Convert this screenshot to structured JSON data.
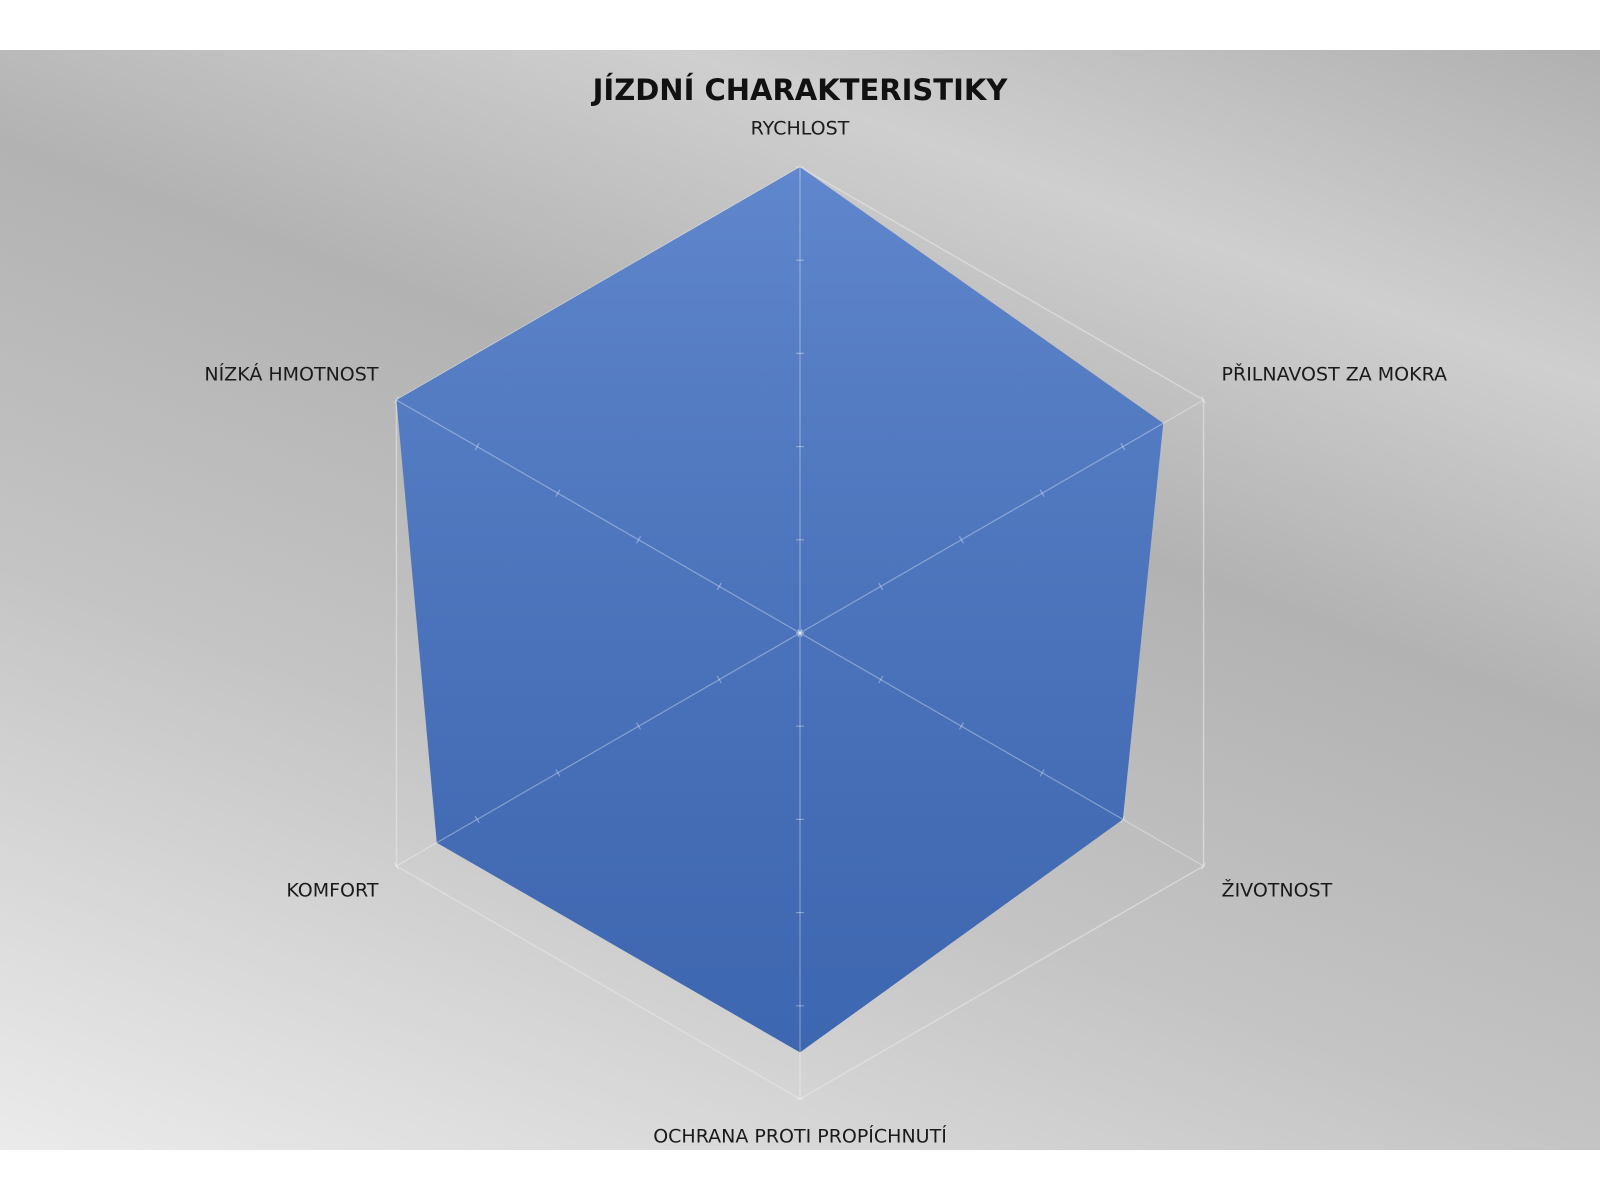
{
  "chart_data": {
    "type": "radar",
    "title": "JÍZDNÍ CHARAKTERISTIKY",
    "categories": [
      "RYCHLOST",
      "PŘILNAVOST ZA MOKRA",
      "ŽIVOTNOST",
      "OCHRANA PROTI PROPÍCHNUTÍ",
      "KOMFORT",
      "NÍZKÁ HMOTNOST"
    ],
    "values": [
      5,
      4.5,
      4,
      4.5,
      4.5,
      5
    ],
    "color": "#4472c4",
    "rlim": [
      0,
      5
    ],
    "rticks": [
      0,
      1,
      2,
      3,
      4,
      5
    ]
  }
}
